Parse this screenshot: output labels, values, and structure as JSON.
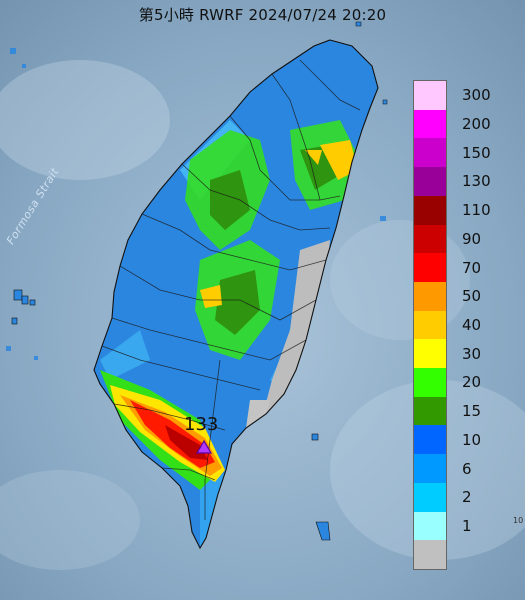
{
  "title": "第5小時  RWRF 2024/07/24 20:20",
  "strait_label": "Formosa Strait",
  "max_marker": {
    "value": "133",
    "shape": "triangle",
    "color": "#a020f0"
  },
  "corner_text": "10",
  "legend": [
    {
      "label": "300",
      "color": "#ffc8ff"
    },
    {
      "label": "200",
      "color": "#ff00ff"
    },
    {
      "label": "150",
      "color": "#cc00cc"
    },
    {
      "label": "130",
      "color": "#990099"
    },
    {
      "label": "110",
      "color": "#990000"
    },
    {
      "label": "90",
      "color": "#cc0000"
    },
    {
      "label": "70",
      "color": "#ff0000"
    },
    {
      "label": "50",
      "color": "#ff9900"
    },
    {
      "label": "40",
      "color": "#ffcc00"
    },
    {
      "label": "30",
      "color": "#ffff00"
    },
    {
      "label": "20",
      "color": "#33ff00"
    },
    {
      "label": "15",
      "color": "#339900"
    },
    {
      "label": "10",
      "color": "#0066ff"
    },
    {
      "label": "6",
      "color": "#0099ff"
    },
    {
      "label": "2",
      "color": "#00ccff"
    },
    {
      "label": "1",
      "color": "#99ffff"
    },
    {
      "label": "",
      "color": "#c0c0c0"
    }
  ],
  "colors": {
    "sea": "#7f9fb8",
    "land_base": "#2b86df"
  }
}
